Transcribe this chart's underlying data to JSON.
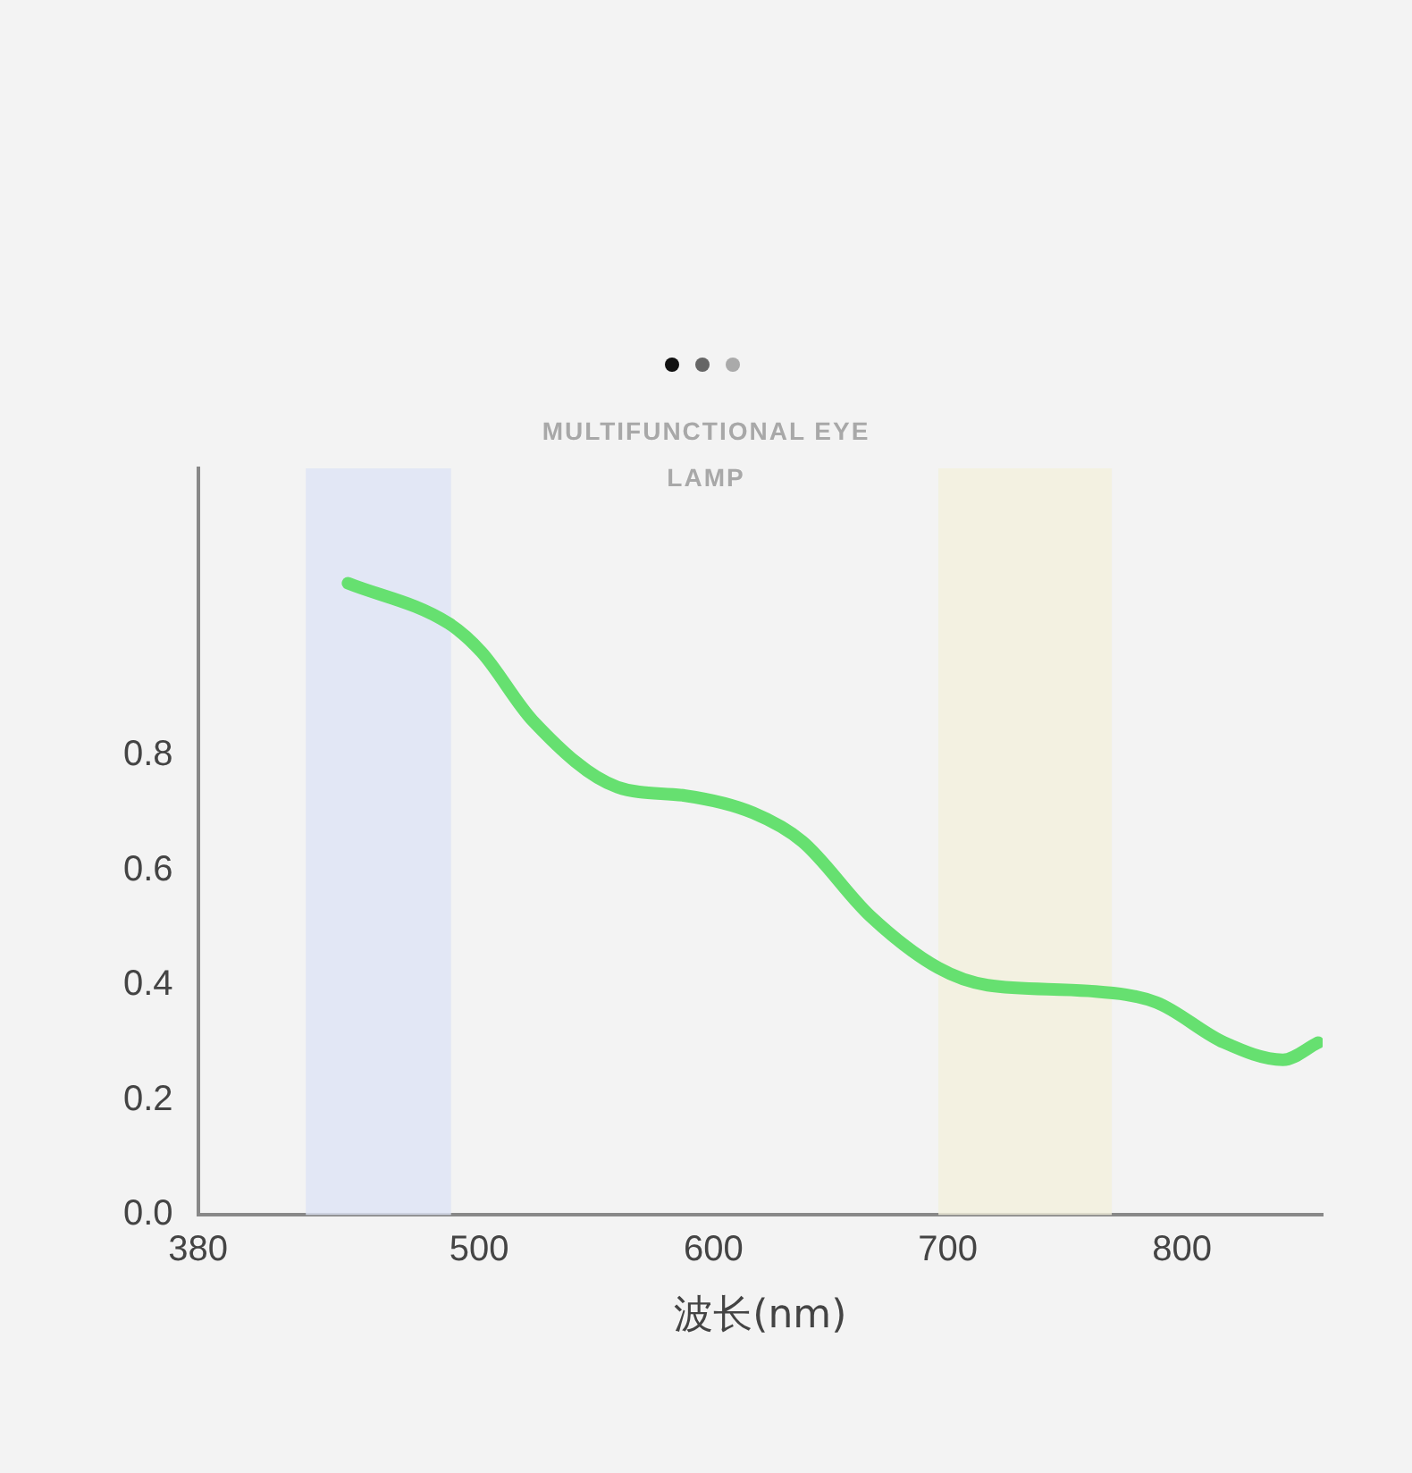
{
  "chart_data": {
    "type": "line",
    "xlabel": "波长(nm)",
    "annotations": [
      "MULTIFUNCTIONAL EYE LAMP"
    ],
    "xlim": [
      380,
      860
    ],
    "xticks": [
      380,
      500,
      600,
      700,
      800
    ],
    "ylim": [
      0,
      1.3
    ],
    "yticks": [
      {
        "value": 0,
        "label": "0.0"
      },
      {
        "value": 0.2,
        "label": "0.2"
      },
      {
        "value": 0.4,
        "label": "0.4"
      },
      {
        "value": 0.6,
        "label": "0.6"
      },
      {
        "value": 0.8,
        "label": "0.8"
      }
    ],
    "grid": false,
    "legend": false,
    "marker": "none",
    "line_style": "solid",
    "bands": [
      {
        "axis": "x",
        "from": 426,
        "to": 488,
        "color": "#dde3f5"
      },
      {
        "axis": "x",
        "from": 696,
        "to": 770,
        "color": "#f2f0dc"
      }
    ],
    "series": [
      {
        "color": "#66e070",
        "x": [
          444,
          487,
          501,
          523,
          559,
          588,
          617,
          638,
          667,
          696,
          717,
          760,
          789,
          818,
          843,
          858
        ],
        "values": [
          1.1,
          1.03,
          0.98,
          0.86,
          0.745,
          0.73,
          0.7,
          0.65,
          0.52,
          0.43,
          0.4,
          0.39,
          0.37,
          0.3,
          0.27,
          0.3
        ]
      }
    ]
  }
}
